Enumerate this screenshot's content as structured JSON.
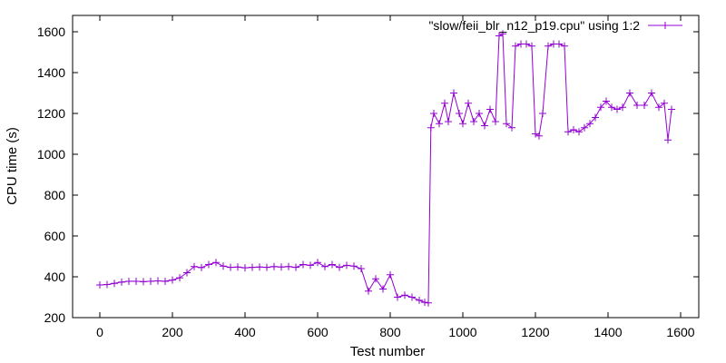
{
  "chart_data": {
    "type": "line",
    "xlabel": "Test number",
    "ylabel": "CPU time (s)",
    "xlim": [
      -75,
      1650
    ],
    "ylim": [
      200,
      1680
    ],
    "x_ticks": [
      "0",
      "200",
      "400",
      "600",
      "800",
      "1000",
      "1200",
      "1400",
      "1600"
    ],
    "y_ticks": [
      "200",
      "400",
      "600",
      "800",
      "1000",
      "1200",
      "1400",
      "1600"
    ],
    "grid": false,
    "legend_position": "top-right",
    "series": [
      {
        "name": "\"slow/feii_blr_n12_p19.cpu\" using 1:2",
        "color": "#9400d3",
        "marker": "plus",
        "points": [
          [
            0,
            360
          ],
          [
            20,
            362
          ],
          [
            40,
            368
          ],
          [
            60,
            374
          ],
          [
            80,
            378
          ],
          [
            100,
            378
          ],
          [
            120,
            376
          ],
          [
            140,
            378
          ],
          [
            160,
            380
          ],
          [
            180,
            378
          ],
          [
            200,
            384
          ],
          [
            220,
            395
          ],
          [
            240,
            420
          ],
          [
            260,
            450
          ],
          [
            280,
            445
          ],
          [
            300,
            460
          ],
          [
            320,
            470
          ],
          [
            340,
            452
          ],
          [
            360,
            446
          ],
          [
            380,
            448
          ],
          [
            400,
            444
          ],
          [
            420,
            446
          ],
          [
            440,
            448
          ],
          [
            460,
            446
          ],
          [
            480,
            450
          ],
          [
            500,
            448
          ],
          [
            520,
            450
          ],
          [
            540,
            446
          ],
          [
            560,
            460
          ],
          [
            580,
            456
          ],
          [
            600,
            470
          ],
          [
            620,
            450
          ],
          [
            640,
            460
          ],
          [
            660,
            446
          ],
          [
            680,
            456
          ],
          [
            700,
            452
          ],
          [
            720,
            440
          ],
          [
            740,
            330
          ],
          [
            760,
            390
          ],
          [
            780,
            340
          ],
          [
            800,
            410
          ],
          [
            820,
            300
          ],
          [
            840,
            310
          ],
          [
            860,
            300
          ],
          [
            880,
            285
          ],
          [
            895,
            275
          ],
          [
            905,
            272
          ],
          [
            912,
            1130
          ],
          [
            920,
            1200
          ],
          [
            935,
            1150
          ],
          [
            950,
            1250
          ],
          [
            960,
            1160
          ],
          [
            975,
            1300
          ],
          [
            990,
            1200
          ],
          [
            1000,
            1150
          ],
          [
            1015,
            1250
          ],
          [
            1030,
            1160
          ],
          [
            1045,
            1200
          ],
          [
            1060,
            1140
          ],
          [
            1075,
            1220
          ],
          [
            1090,
            1160
          ],
          [
            1100,
            1580
          ],
          [
            1110,
            1590
          ],
          [
            1120,
            1150
          ],
          [
            1135,
            1130
          ],
          [
            1145,
            1530
          ],
          [
            1160,
            1540
          ],
          [
            1175,
            1540
          ],
          [
            1190,
            1530
          ],
          [
            1200,
            1100
          ],
          [
            1210,
            1090
          ],
          [
            1220,
            1200
          ],
          [
            1235,
            1530
          ],
          [
            1250,
            1540
          ],
          [
            1265,
            1540
          ],
          [
            1280,
            1530
          ],
          [
            1290,
            1110
          ],
          [
            1305,
            1120
          ],
          [
            1320,
            1110
          ],
          [
            1335,
            1130
          ],
          [
            1350,
            1150
          ],
          [
            1365,
            1180
          ],
          [
            1380,
            1230
          ],
          [
            1395,
            1260
          ],
          [
            1410,
            1230
          ],
          [
            1425,
            1220
          ],
          [
            1440,
            1230
          ],
          [
            1460,
            1300
          ],
          [
            1480,
            1240
          ],
          [
            1500,
            1240
          ],
          [
            1520,
            1300
          ],
          [
            1540,
            1230
          ],
          [
            1555,
            1250
          ],
          [
            1565,
            1070
          ],
          [
            1575,
            1220
          ]
        ]
      }
    ]
  }
}
